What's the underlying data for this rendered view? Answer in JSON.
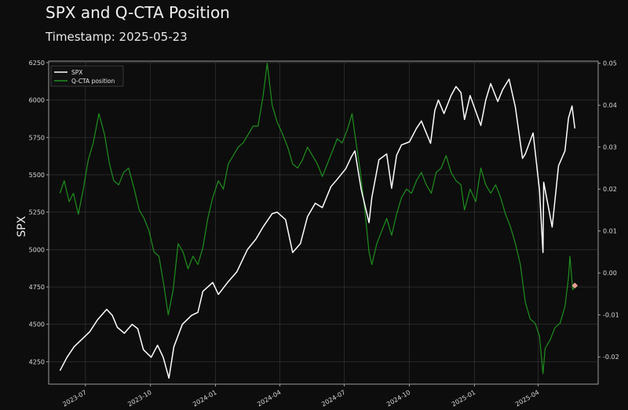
{
  "title": "SPX and Q-CTA Position",
  "subtitle": "Timestamp: 2025-05-23",
  "colors": {
    "background": "#0d0d0d",
    "spx": "#ffffff",
    "cta": "#1f8f1f",
    "marker": "#e8a090",
    "grid": "#3a3a3a"
  },
  "chart_data": {
    "type": "line",
    "title": "SPX and Q-CTA Position",
    "subtitle": "Timestamp: 2025-05-23",
    "ylabel": "SPX",
    "y2label": "",
    "xlim": [
      "2023-05-10",
      "2025-06-25"
    ],
    "ylim": [
      4100,
      6260
    ],
    "y2lim": [
      -0.0265,
      0.0505
    ],
    "grid": true,
    "legend": {
      "position": "top-left",
      "entries": [
        "SPX",
        "Q-CTA position"
      ]
    },
    "x_ticks": [
      "2023-07",
      "2023-10",
      "2024-01",
      "2024-04",
      "2024-07",
      "2024-10",
      "2025-01",
      "2025-04"
    ],
    "y_ticks": [
      4250,
      4500,
      4750,
      5000,
      5250,
      5500,
      5750,
      6000,
      6250
    ],
    "y2_ticks": [
      "-0.02",
      "-0.01",
      "0.00",
      "0.01",
      "0.02",
      "0.03",
      "0.04",
      "0.05"
    ],
    "series": [
      {
        "name": "SPX",
        "axis": "left",
        "color": "#ffffff",
        "points": [
          [
            "2023-05-26",
            4190
          ],
          [
            "2023-06-05",
            4280
          ],
          [
            "2023-06-15",
            4350
          ],
          [
            "2023-06-26",
            4400
          ],
          [
            "2023-07-07",
            4450
          ],
          [
            "2023-07-18",
            4530
          ],
          [
            "2023-07-31",
            4600
          ],
          [
            "2023-08-08",
            4560
          ],
          [
            "2023-08-15",
            4480
          ],
          [
            "2023-08-25",
            4440
          ],
          [
            "2023-09-05",
            4500
          ],
          [
            "2023-09-13",
            4470
          ],
          [
            "2023-09-21",
            4330
          ],
          [
            "2023-10-02",
            4280
          ],
          [
            "2023-10-11",
            4360
          ],
          [
            "2023-10-19",
            4280
          ],
          [
            "2023-10-27",
            4140
          ],
          [
            "2023-11-03",
            4350
          ],
          [
            "2023-11-15",
            4500
          ],
          [
            "2023-11-28",
            4560
          ],
          [
            "2023-12-07",
            4580
          ],
          [
            "2023-12-14",
            4720
          ],
          [
            "2023-12-28",
            4780
          ],
          [
            "2024-01-05",
            4700
          ],
          [
            "2024-01-18",
            4780
          ],
          [
            "2024-01-31",
            4850
          ],
          [
            "2024-02-15",
            5000
          ],
          [
            "2024-02-27",
            5070
          ],
          [
            "2024-03-08",
            5150
          ],
          [
            "2024-03-21",
            5240
          ],
          [
            "2024-03-28",
            5250
          ],
          [
            "2024-04-09",
            5200
          ],
          [
            "2024-04-19",
            4980
          ],
          [
            "2024-04-30",
            5040
          ],
          [
            "2024-05-10",
            5220
          ],
          [
            "2024-05-21",
            5310
          ],
          [
            "2024-05-31",
            5280
          ],
          [
            "2024-06-12",
            5420
          ],
          [
            "2024-06-21",
            5470
          ],
          [
            "2024-07-03",
            5540
          ],
          [
            "2024-07-11",
            5620
          ],
          [
            "2024-07-16",
            5660
          ],
          [
            "2024-07-25",
            5400
          ],
          [
            "2024-08-05",
            5180
          ],
          [
            "2024-08-09",
            5350
          ],
          [
            "2024-08-19",
            5600
          ],
          [
            "2024-08-30",
            5640
          ],
          [
            "2024-09-06",
            5410
          ],
          [
            "2024-09-13",
            5630
          ],
          [
            "2024-09-20",
            5700
          ],
          [
            "2024-10-01",
            5720
          ],
          [
            "2024-10-11",
            5810
          ],
          [
            "2024-10-18",
            5860
          ],
          [
            "2024-10-31",
            5710
          ],
          [
            "2024-11-06",
            5930
          ],
          [
            "2024-11-11",
            6000
          ],
          [
            "2024-11-19",
            5910
          ],
          [
            "2024-11-29",
            6030
          ],
          [
            "2024-12-06",
            6090
          ],
          [
            "2024-12-13",
            6050
          ],
          [
            "2024-12-18",
            5870
          ],
          [
            "2024-12-26",
            6030
          ],
          [
            "2025-01-10",
            5830
          ],
          [
            "2025-01-17",
            6000
          ],
          [
            "2025-01-24",
            6110
          ],
          [
            "2025-02-03",
            5990
          ],
          [
            "2025-02-10",
            6070
          ],
          [
            "2025-02-19",
            6140
          ],
          [
            "2025-02-28",
            5950
          ],
          [
            "2025-03-10",
            5610
          ],
          [
            "2025-03-14",
            5640
          ],
          [
            "2025-03-25",
            5780
          ],
          [
            "2025-04-03",
            5400
          ],
          [
            "2025-04-08",
            4980
          ],
          [
            "2025-04-09",
            5450
          ],
          [
            "2025-04-21",
            5150
          ],
          [
            "2025-04-30",
            5560
          ],
          [
            "2025-05-09",
            5660
          ],
          [
            "2025-05-14",
            5880
          ],
          [
            "2025-05-19",
            5960
          ],
          [
            "2025-05-23",
            5810
          ]
        ]
      },
      {
        "name": "Q-CTA position",
        "axis": "right",
        "color": "#1f8f1f",
        "points": [
          [
            "2023-05-26",
            0.019
          ],
          [
            "2023-06-01",
            0.022
          ],
          [
            "2023-06-08",
            0.017
          ],
          [
            "2023-06-14",
            0.019
          ],
          [
            "2023-06-21",
            0.014
          ],
          [
            "2023-06-28",
            0.02
          ],
          [
            "2023-07-05",
            0.027
          ],
          [
            "2023-07-12",
            0.031
          ],
          [
            "2023-07-20",
            0.038
          ],
          [
            "2023-07-28",
            0.033
          ],
          [
            "2023-08-04",
            0.026
          ],
          [
            "2023-08-10",
            0.022
          ],
          [
            "2023-08-17",
            0.021
          ],
          [
            "2023-08-24",
            0.024
          ],
          [
            "2023-08-31",
            0.025
          ],
          [
            "2023-09-08",
            0.02
          ],
          [
            "2023-09-15",
            0.015
          ],
          [
            "2023-09-22",
            0.013
          ],
          [
            "2023-09-29",
            0.01
          ],
          [
            "2023-10-06",
            0.005
          ],
          [
            "2023-10-13",
            0.004
          ],
          [
            "2023-10-20",
            -0.003
          ],
          [
            "2023-10-26",
            -0.01
          ],
          [
            "2023-11-02",
            -0.004
          ],
          [
            "2023-11-09",
            0.007
          ],
          [
            "2023-11-16",
            0.005
          ],
          [
            "2023-11-23",
            0.001
          ],
          [
            "2023-11-30",
            0.004
          ],
          [
            "2023-12-07",
            0.002
          ],
          [
            "2023-12-14",
            0.006
          ],
          [
            "2023-12-21",
            0.013
          ],
          [
            "2023-12-28",
            0.018
          ],
          [
            "2024-01-05",
            0.022
          ],
          [
            "2024-01-12",
            0.02
          ],
          [
            "2024-01-19",
            0.026
          ],
          [
            "2024-01-26",
            0.028
          ],
          [
            "2024-02-02",
            0.03
          ],
          [
            "2024-02-09",
            0.031
          ],
          [
            "2024-02-16",
            0.033
          ],
          [
            "2024-02-23",
            0.035
          ],
          [
            "2024-03-01",
            0.035
          ],
          [
            "2024-03-08",
            0.042
          ],
          [
            "2024-03-14",
            0.05
          ],
          [
            "2024-03-21",
            0.04
          ],
          [
            "2024-03-28",
            0.036
          ],
          [
            "2024-04-05",
            0.033
          ],
          [
            "2024-04-12",
            0.03
          ],
          [
            "2024-04-19",
            0.026
          ],
          [
            "2024-04-26",
            0.025
          ],
          [
            "2024-05-03",
            0.027
          ],
          [
            "2024-05-10",
            0.03
          ],
          [
            "2024-05-17",
            0.028
          ],
          [
            "2024-05-24",
            0.026
          ],
          [
            "2024-05-31",
            0.023
          ],
          [
            "2024-06-07",
            0.026
          ],
          [
            "2024-06-14",
            0.029
          ],
          [
            "2024-06-21",
            0.032
          ],
          [
            "2024-06-28",
            0.031
          ],
          [
            "2024-07-05",
            0.034
          ],
          [
            "2024-07-12",
            0.038
          ],
          [
            "2024-07-16",
            0.033
          ],
          [
            "2024-07-23",
            0.025
          ],
          [
            "2024-07-30",
            0.015
          ],
          [
            "2024-08-05",
            0.005
          ],
          [
            "2024-08-09",
            0.002
          ],
          [
            "2024-08-16",
            0.007
          ],
          [
            "2024-08-23",
            0.01
          ],
          [
            "2024-08-30",
            0.013
          ],
          [
            "2024-09-06",
            0.009
          ],
          [
            "2024-09-13",
            0.014
          ],
          [
            "2024-09-20",
            0.018
          ],
          [
            "2024-09-27",
            0.02
          ],
          [
            "2024-10-04",
            0.019
          ],
          [
            "2024-10-11",
            0.022
          ],
          [
            "2024-10-18",
            0.024
          ],
          [
            "2024-10-25",
            0.021
          ],
          [
            "2024-11-01",
            0.019
          ],
          [
            "2024-11-08",
            0.024
          ],
          [
            "2024-11-15",
            0.025
          ],
          [
            "2024-11-22",
            0.028
          ],
          [
            "2024-11-29",
            0.024
          ],
          [
            "2024-12-06",
            0.022
          ],
          [
            "2024-12-13",
            0.021
          ],
          [
            "2024-12-18",
            0.015
          ],
          [
            "2024-12-26",
            0.02
          ],
          [
            "2025-01-03",
            0.017
          ],
          [
            "2025-01-10",
            0.025
          ],
          [
            "2025-01-17",
            0.021
          ],
          [
            "2025-01-24",
            0.019
          ],
          [
            "2025-01-31",
            0.021
          ],
          [
            "2025-02-07",
            0.018
          ],
          [
            "2025-02-14",
            0.014
          ],
          [
            "2025-02-21",
            0.011
          ],
          [
            "2025-02-28",
            0.007
          ],
          [
            "2025-03-07",
            0.002
          ],
          [
            "2025-03-14",
            -0.007
          ],
          [
            "2025-03-21",
            -0.011
          ],
          [
            "2025-03-28",
            -0.012
          ],
          [
            "2025-04-03",
            -0.015
          ],
          [
            "2025-04-08",
            -0.024
          ],
          [
            "2025-04-11",
            -0.018
          ],
          [
            "2025-04-18",
            -0.016
          ],
          [
            "2025-04-25",
            -0.013
          ],
          [
            "2025-05-02",
            -0.012
          ],
          [
            "2025-05-09",
            -0.008
          ],
          [
            "2025-05-14",
            -0.001
          ],
          [
            "2025-05-16",
            0.004
          ],
          [
            "2025-05-20",
            -0.004
          ],
          [
            "2025-05-23",
            -0.003
          ]
        ]
      }
    ],
    "marker": {
      "date": "2025-05-23",
      "value": -0.003,
      "color": "#e8a090",
      "shape": "diamond"
    }
  }
}
